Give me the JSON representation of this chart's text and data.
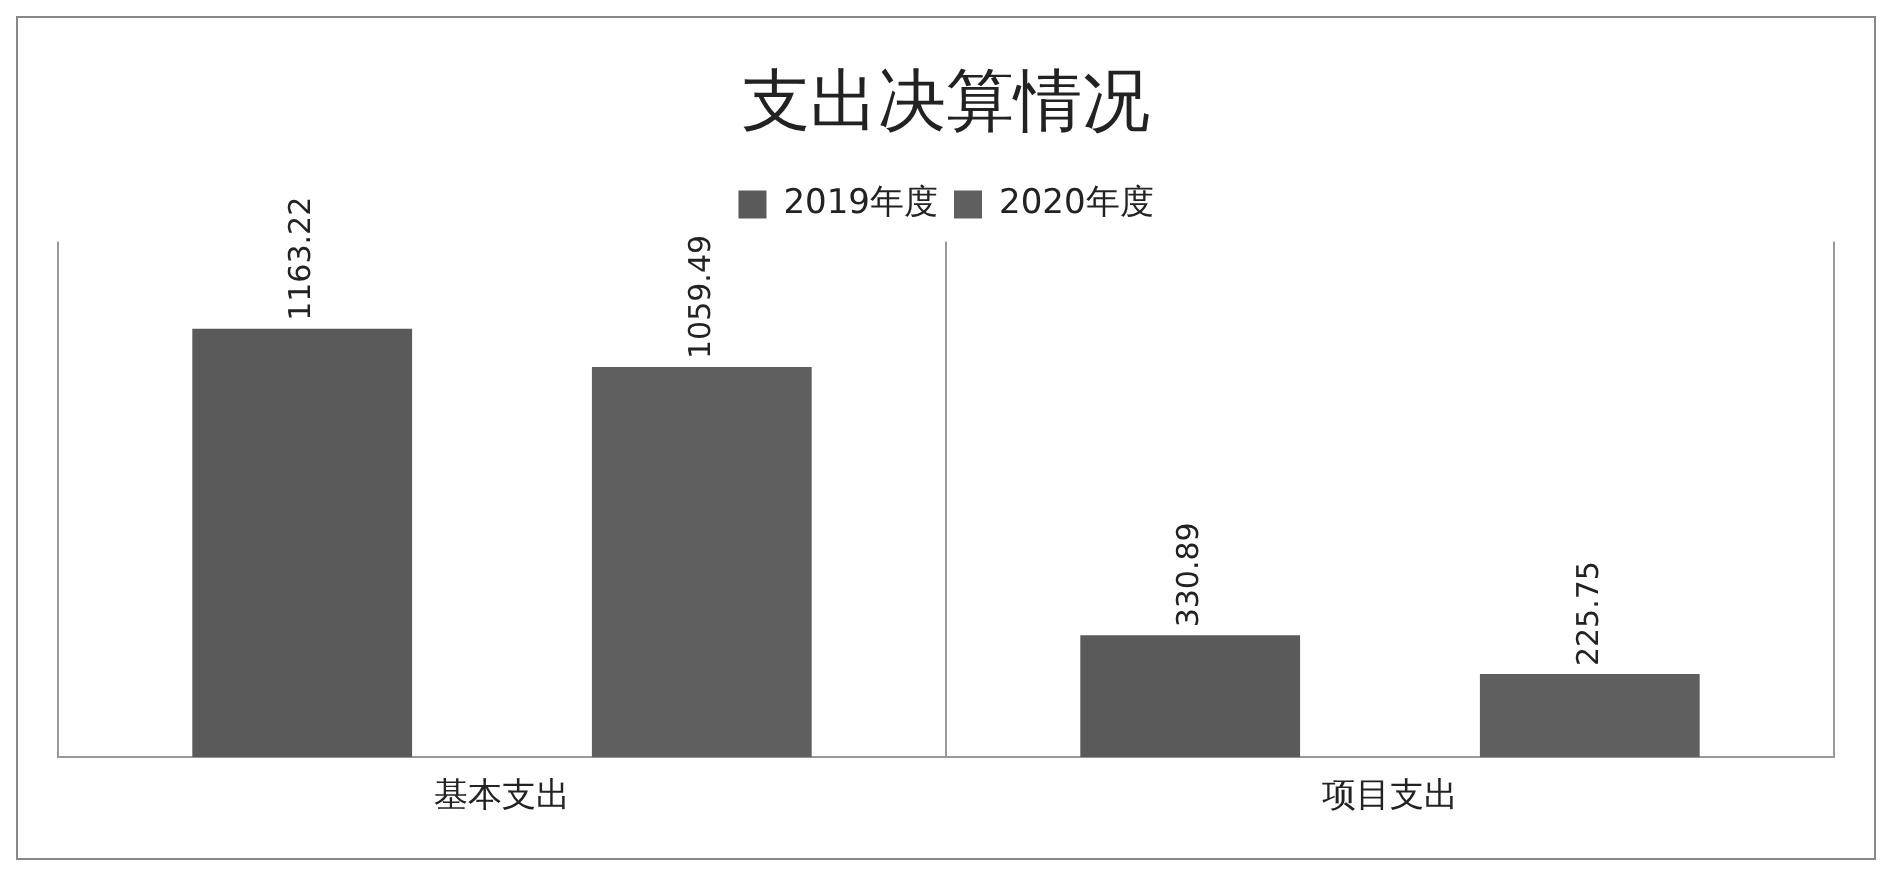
{
  "chart_data": {
    "type": "bar",
    "title": "支出决算情况",
    "categories": [
      "基本支出",
      "项目支出"
    ],
    "series": [
      {
        "name": "2019年度",
        "color": "#5a5a5a",
        "values": [
          1163.22,
          330.89
        ]
      },
      {
        "name": "2020年度",
        "color": "#5f5f5f",
        "values": [
          1059.49,
          225.75
        ]
      }
    ],
    "data_labels": true,
    "legend": "top",
    "grid": "x"
  }
}
